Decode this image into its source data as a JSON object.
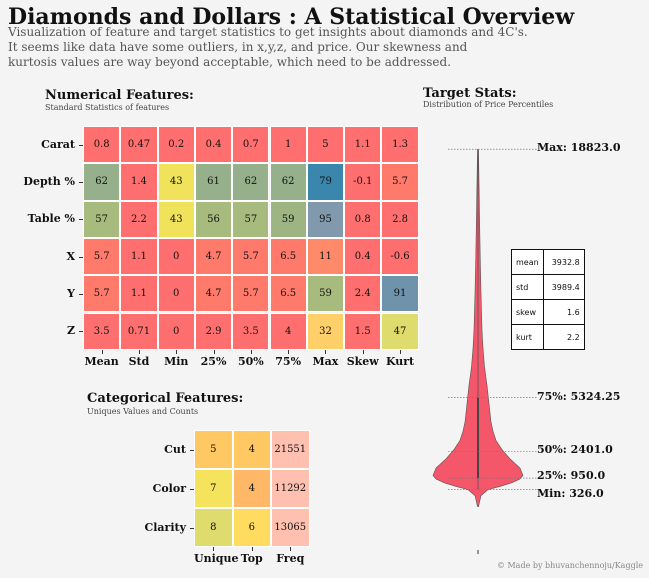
{
  "title": "Diamonds and Dollars : A Statistical Overview",
  "description": [
    "Visualization of feature and target statistics to get insights about diamonds and 4C's.",
    "It seems like data have some outliers, in x,y,z, and price. Our skewness and",
    "kurtosis values are way beyond acceptable, which need to be addressed."
  ],
  "numerical": {
    "title": "Numerical Features:",
    "subtitle": "Standard Statistics of features",
    "columns": [
      "Mean",
      "Std",
      "Min",
      "25%",
      "50%",
      "75%",
      "Max",
      "Skew",
      "Kurt"
    ],
    "rows": [
      {
        "label": "Carat",
        "values": [
          "0.8",
          "0.47",
          "0.2",
          "0.4",
          "0.7",
          "1",
          "5",
          "1.1",
          "1.3"
        ],
        "colors": [
          "#ff6f6f",
          "#ff6f6f",
          "#ff6f6f",
          "#ff6f6f",
          "#ff6f6f",
          "#ff6f6f",
          "#ff6f6f",
          "#ff6f6f",
          "#ff6f6f"
        ]
      },
      {
        "label": "Depth %",
        "values": [
          "62",
          "1.4",
          "43",
          "61",
          "62",
          "62",
          "79",
          "-0.1",
          "5.7"
        ],
        "colors": [
          "#95b08a",
          "#ff6f6f",
          "#f1e25b",
          "#95b08a",
          "#95b08a",
          "#95b08a",
          "#3a86ac",
          "#ff6f6f",
          "#ff7a6b"
        ]
      },
      {
        "label": "Table %",
        "values": [
          "57",
          "2.2",
          "43",
          "56",
          "57",
          "59",
          "95",
          "0.8",
          "2.8"
        ],
        "colors": [
          "#a8bb7e",
          "#ff6f6f",
          "#f1e25b",
          "#a8bb7e",
          "#a8bb7e",
          "#9db583",
          "#8099ac",
          "#ff6f6f",
          "#ff6f6f"
        ]
      },
      {
        "label": "X",
        "values": [
          "5.7",
          "1.1",
          "0",
          "4.7",
          "5.7",
          "6.5",
          "11",
          "0.4",
          "-0.6"
        ],
        "colors": [
          "#ff7a6b",
          "#ff6f6f",
          "#ff6f6f",
          "#ff7a6b",
          "#ff7a6b",
          "#ff7a6b",
          "#ff8a6a",
          "#ff6f6f",
          "#ff6f6f"
        ]
      },
      {
        "label": "Y",
        "values": [
          "5.7",
          "1.1",
          "0",
          "4.7",
          "5.7",
          "6.5",
          "59",
          "2.4",
          "91"
        ],
        "colors": [
          "#ff7a6b",
          "#ff6f6f",
          "#ff6f6f",
          "#ff7a6b",
          "#ff7a6b",
          "#ff7a6b",
          "#a8bb7e",
          "#ff6f6f",
          "#6f93aa"
        ]
      },
      {
        "label": "Z",
        "values": [
          "3.5",
          "0.71",
          "0",
          "2.9",
          "3.5",
          "4",
          "32",
          "1.5",
          "47"
        ],
        "colors": [
          "#ff6f6f",
          "#ff6f6f",
          "#ff6f6f",
          "#ff6f6f",
          "#ff6f6f",
          "#ff6f6f",
          "#ffd06a",
          "#ff6f6f",
          "#dedc6c"
        ]
      }
    ]
  },
  "categorical": {
    "title": "Categorical Features:",
    "subtitle": "Uniques Values and Counts",
    "columns": [
      "Unique",
      "Top",
      "Freq"
    ],
    "rows": [
      {
        "label": "Cut",
        "values": [
          "5",
          "4",
          "21551"
        ],
        "colors": [
          "#ffc862",
          "#ffc862",
          "#ffc0b0"
        ]
      },
      {
        "label": "Color",
        "values": [
          "7",
          "4",
          "11292"
        ],
        "colors": [
          "#f5e35d",
          "#ffb868",
          "#ffc0b0"
        ]
      },
      {
        "label": "Clarity",
        "values": [
          "8",
          "6",
          "13065"
        ],
        "colors": [
          "#dedc6c",
          "#ffdc60",
          "#ffc0b0"
        ]
      }
    ]
  },
  "target": {
    "title": "Target Stats:",
    "subtitle": "Distribution of Price Percentiles",
    "violin_color": "#f4566a",
    "stats": [
      {
        "key": "mean",
        "value": "3932.8"
      },
      {
        "key": "std",
        "value": "3989.4"
      },
      {
        "key": "skew",
        "value": "1.6"
      },
      {
        "key": "kurt",
        "value": "2.2"
      }
    ],
    "percentile_labels": [
      {
        "text": "Max: 18823.0",
        "price": 18823
      },
      {
        "text": "75%: 5324.25",
        "price": 5324.25
      },
      {
        "text": "50%: 2401.0",
        "price": 2401
      },
      {
        "text": "25%: 950.0",
        "price": 950
      },
      {
        "text": "Min: 326.0",
        "price": 326
      }
    ]
  },
  "credit": "© Made by bhuvanchennoju/Kaggle"
}
